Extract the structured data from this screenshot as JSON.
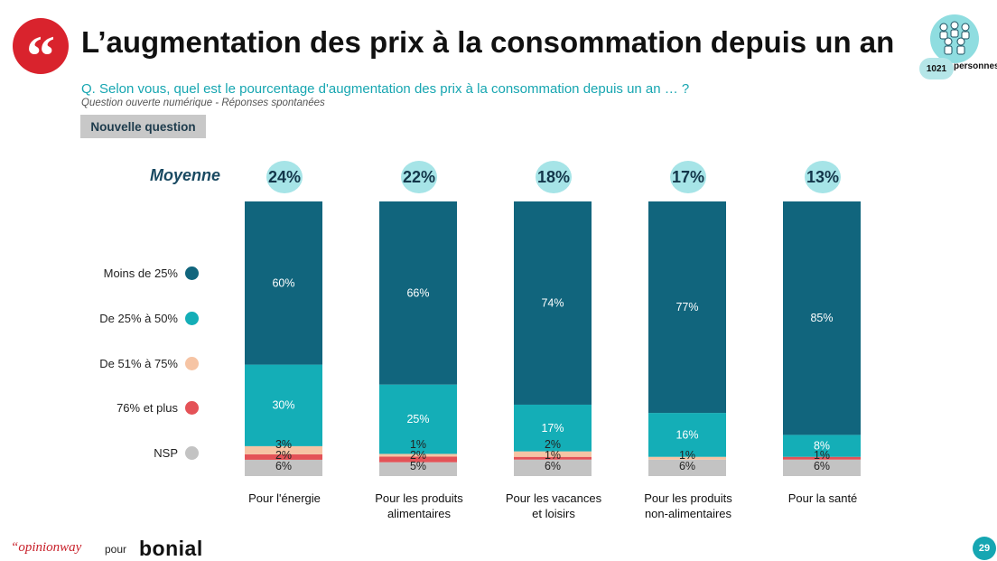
{
  "title": "L’augmentation des prix à la consommation depuis un an",
  "quote_icon": "quote-icon",
  "sample": {
    "count": "1021",
    "unit": "personnes",
    "icon": "people-group-icon"
  },
  "question": "Q. Selon vous, quel est le pourcentage d'augmentation des prix à la consommation depuis un an … ?",
  "subnote": "Question ouverte numérique - Réponses spontanées",
  "tag": "Nouvelle question",
  "moyenne_label": "Moyenne",
  "colors": {
    "moins_25": "#11657d",
    "25_50": "#14aeb7",
    "51_75": "#f6c4a4",
    "76_plus": "#e45257",
    "nsp": "#c3c3c3",
    "avg_circle": "#a6e4e7",
    "brand_red": "#d9232d"
  },
  "footer": {
    "brand": "“opinionway",
    "pour": "pour",
    "client": "bonial",
    "page": "29"
  },
  "chart_data": {
    "type": "bar",
    "stacked": true,
    "ylim": [
      0,
      100
    ],
    "categories": [
      [
        "Pour l'énergie"
      ],
      [
        "Pour les produits",
        "alimentaires"
      ],
      [
        "Pour les vacances",
        "et loisirs"
      ],
      [
        "Pour les produits",
        "non-alimentaires"
      ],
      [
        "Pour la santé"
      ]
    ],
    "averages": [
      "24%",
      "22%",
      "18%",
      "17%",
      "13%"
    ],
    "series": [
      {
        "name": "NSP",
        "values": [
          6,
          5,
          6,
          6,
          6
        ],
        "labels": [
          "6%",
          "5%",
          "6%",
          "6%",
          "6%"
        ]
      },
      {
        "name": "76% et plus",
        "values": [
          2,
          2,
          1,
          0,
          1
        ],
        "labels": [
          "2%",
          "2%",
          "1%",
          "",
          "1%"
        ]
      },
      {
        "name": "De 51% à 75%",
        "values": [
          3,
          1,
          2,
          1,
          0
        ],
        "labels": [
          "3%",
          "1%",
          "2%",
          "1%",
          ""
        ]
      },
      {
        "name": "De 25% à 50%",
        "values": [
          30,
          25,
          17,
          16,
          8
        ],
        "labels": [
          "30%",
          "25%",
          "17%",
          "16%",
          "8%"
        ]
      },
      {
        "name": "Moins de 25%",
        "values": [
          60,
          66,
          74,
          77,
          85
        ],
        "labels": [
          "60%",
          "66%",
          "74%",
          "77%",
          "85%"
        ]
      }
    ],
    "legend_order": [
      "Moins de 25%",
      "De 25% à 50%",
      "De 51% à 75%",
      "76% et plus",
      "NSP"
    ],
    "legend_position": "left"
  }
}
